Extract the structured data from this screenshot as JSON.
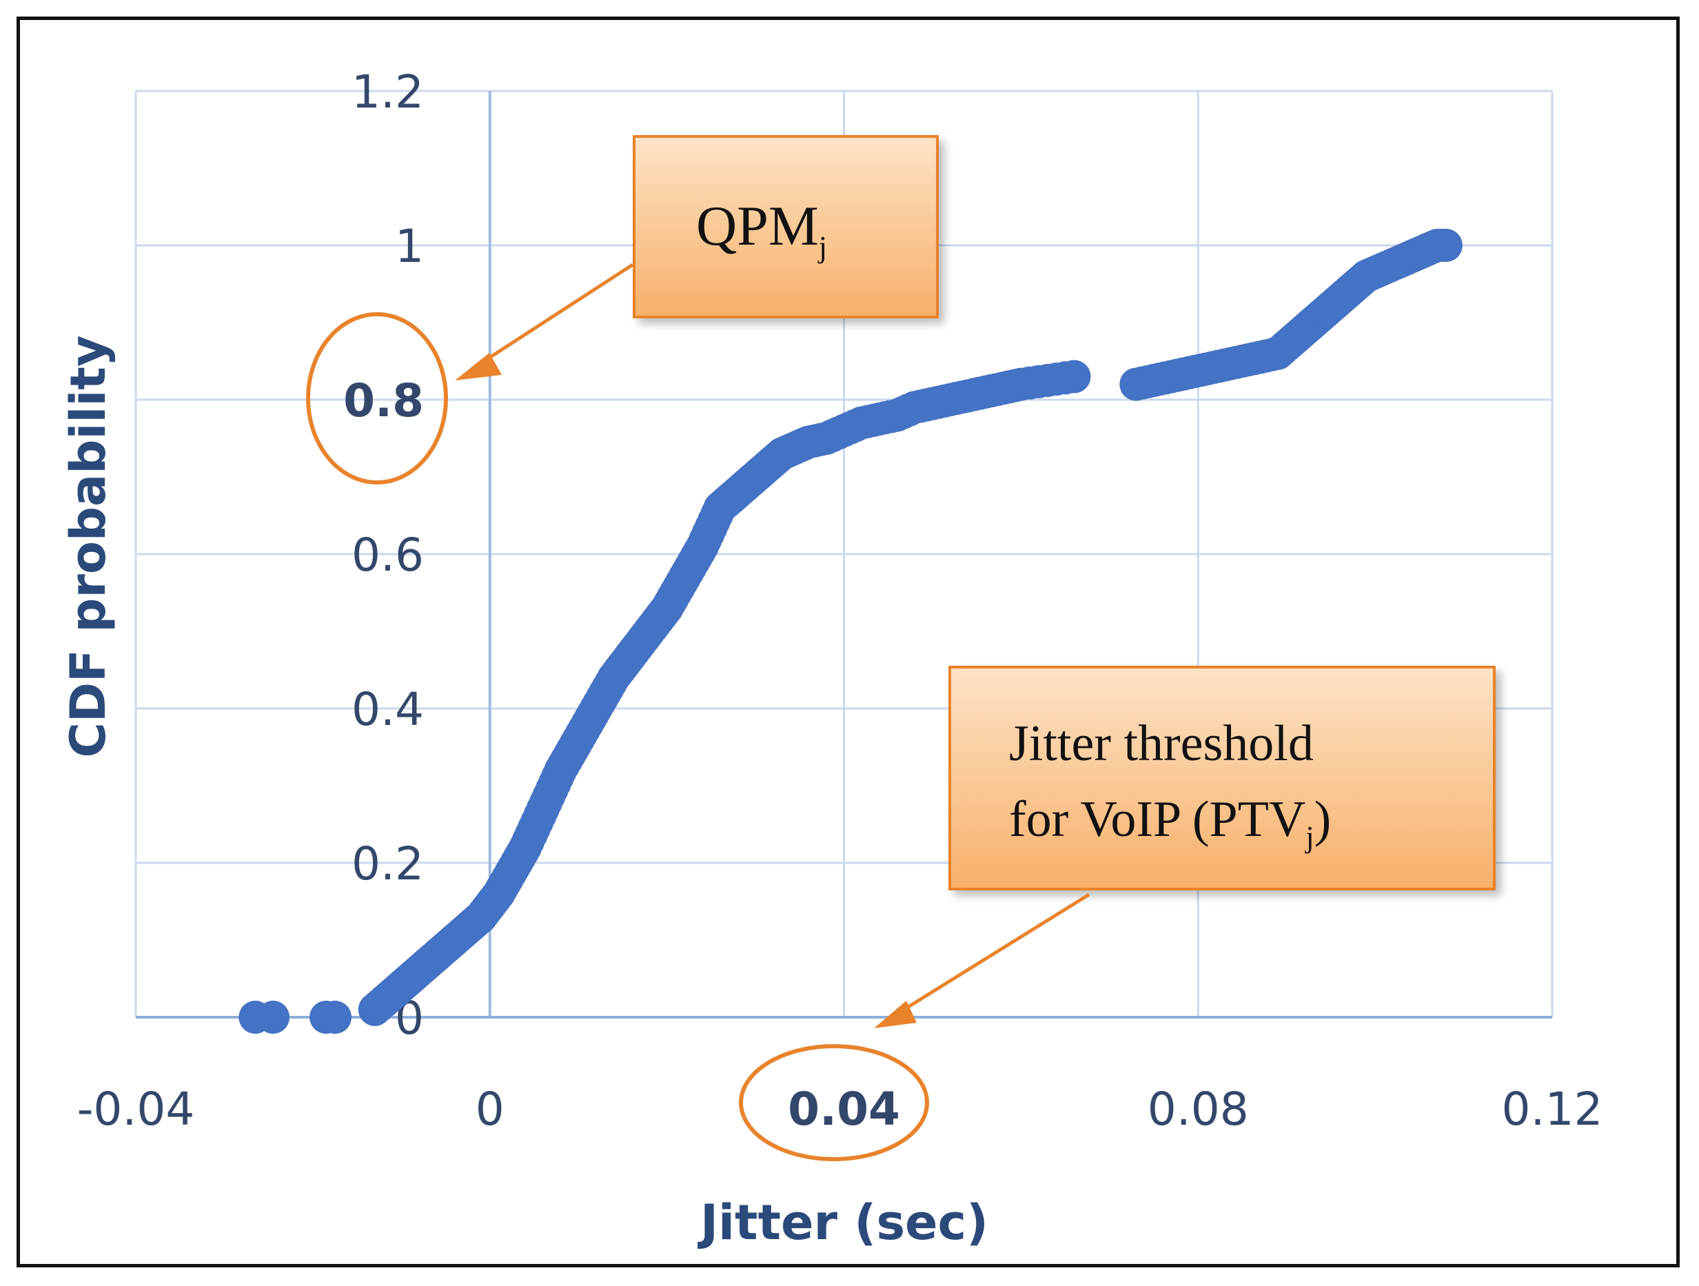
{
  "chart_data": {
    "type": "scatter",
    "title": "",
    "xlabel": "Jitter (sec)",
    "ylabel": "CDF probability",
    "xlim": [
      -0.04,
      0.12
    ],
    "ylim": [
      0,
      1.2
    ],
    "x_ticks": [
      -0.04,
      0,
      0.04,
      0.08,
      0.12
    ],
    "x_tick_labels": [
      "-0.04",
      "0",
      "0.04",
      "0.08",
      "0.12"
    ],
    "y_ticks": [
      0,
      0.2,
      0.4,
      0.6,
      0.8,
      1,
      1.2
    ],
    "y_tick_labels": [
      "0",
      "0.2",
      "0.4",
      "0.6",
      "0.8",
      "1",
      "1.2"
    ],
    "grid": true,
    "marker_color": "#4472c4",
    "series": [
      {
        "name": "Jitter CDF",
        "points": [
          [
            -0.0265,
            0.0
          ],
          [
            -0.0245,
            0.0
          ],
          [
            -0.0185,
            0.0
          ],
          [
            -0.0175,
            0.0
          ],
          [
            -0.013,
            0.01
          ],
          [
            -0.012,
            0.02
          ],
          [
            -0.011,
            0.03
          ],
          [
            -0.01,
            0.04
          ],
          [
            -0.009,
            0.05
          ],
          [
            -0.008,
            0.06
          ],
          [
            -0.007,
            0.07
          ],
          [
            -0.006,
            0.08
          ],
          [
            -0.005,
            0.09
          ],
          [
            -0.004,
            0.1
          ],
          [
            -0.003,
            0.11
          ],
          [
            -0.002,
            0.12
          ],
          [
            -0.001,
            0.13
          ],
          [
            0.0,
            0.145
          ],
          [
            0.001,
            0.16
          ],
          [
            0.002,
            0.18
          ],
          [
            0.003,
            0.2
          ],
          [
            0.004,
            0.22
          ],
          [
            0.005,
            0.245
          ],
          [
            0.006,
            0.27
          ],
          [
            0.007,
            0.295
          ],
          [
            0.008,
            0.32
          ],
          [
            0.009,
            0.34
          ],
          [
            0.01,
            0.36
          ],
          [
            0.011,
            0.38
          ],
          [
            0.012,
            0.4
          ],
          [
            0.013,
            0.42
          ],
          [
            0.014,
            0.44
          ],
          [
            0.015,
            0.455
          ],
          [
            0.016,
            0.47
          ],
          [
            0.017,
            0.485
          ],
          [
            0.018,
            0.5
          ],
          [
            0.019,
            0.515
          ],
          [
            0.02,
            0.53
          ],
          [
            0.021,
            0.55
          ],
          [
            0.022,
            0.57
          ],
          [
            0.023,
            0.59
          ],
          [
            0.024,
            0.61
          ],
          [
            0.025,
            0.635
          ],
          [
            0.026,
            0.66
          ],
          [
            0.027,
            0.67
          ],
          [
            0.028,
            0.68
          ],
          [
            0.029,
            0.69
          ],
          [
            0.03,
            0.7
          ],
          [
            0.031,
            0.71
          ],
          [
            0.032,
            0.72
          ],
          [
            0.033,
            0.73
          ],
          [
            0.034,
            0.735
          ],
          [
            0.035,
            0.74
          ],
          [
            0.036,
            0.745
          ],
          [
            0.038,
            0.75
          ],
          [
            0.04,
            0.76
          ],
          [
            0.042,
            0.77
          ],
          [
            0.044,
            0.775
          ],
          [
            0.046,
            0.78
          ],
          [
            0.048,
            0.79
          ],
          [
            0.05,
            0.795
          ],
          [
            0.052,
            0.8
          ],
          [
            0.054,
            0.805
          ],
          [
            0.056,
            0.81
          ],
          [
            0.058,
            0.815
          ],
          [
            0.06,
            0.82
          ],
          [
            0.063,
            0.825
          ],
          [
            0.066,
            0.83
          ],
          [
            0.073,
            0.82
          ],
          [
            0.075,
            0.825
          ],
          [
            0.077,
            0.83
          ],
          [
            0.079,
            0.835
          ],
          [
            0.081,
            0.84
          ],
          [
            0.083,
            0.845
          ],
          [
            0.085,
            0.85
          ],
          [
            0.087,
            0.855
          ],
          [
            0.089,
            0.86
          ],
          [
            0.09,
            0.87
          ],
          [
            0.091,
            0.88
          ],
          [
            0.092,
            0.89
          ],
          [
            0.093,
            0.9
          ],
          [
            0.094,
            0.91
          ],
          [
            0.095,
            0.92
          ],
          [
            0.096,
            0.93
          ],
          [
            0.097,
            0.94
          ],
          [
            0.098,
            0.95
          ],
          [
            0.099,
            0.96
          ],
          [
            0.1,
            0.965
          ],
          [
            0.101,
            0.97
          ],
          [
            0.102,
            0.975
          ],
          [
            0.103,
            0.98
          ],
          [
            0.104,
            0.985
          ],
          [
            0.105,
            0.99
          ],
          [
            0.106,
            0.995
          ],
          [
            0.107,
            1.0
          ],
          [
            0.108,
            1.0
          ]
        ]
      }
    ],
    "annotations": [
      {
        "id": "qpm",
        "text": "QPM",
        "subscript": "j",
        "points_to": "y = 0.8"
      },
      {
        "id": "ptv",
        "line1": "Jitter threshold",
        "line2": "for VoIP (PTV",
        "subscript": "j",
        "suffix": ")",
        "points_to": "x = 0.04"
      }
    ],
    "highlight_color": "#e8832c"
  }
}
